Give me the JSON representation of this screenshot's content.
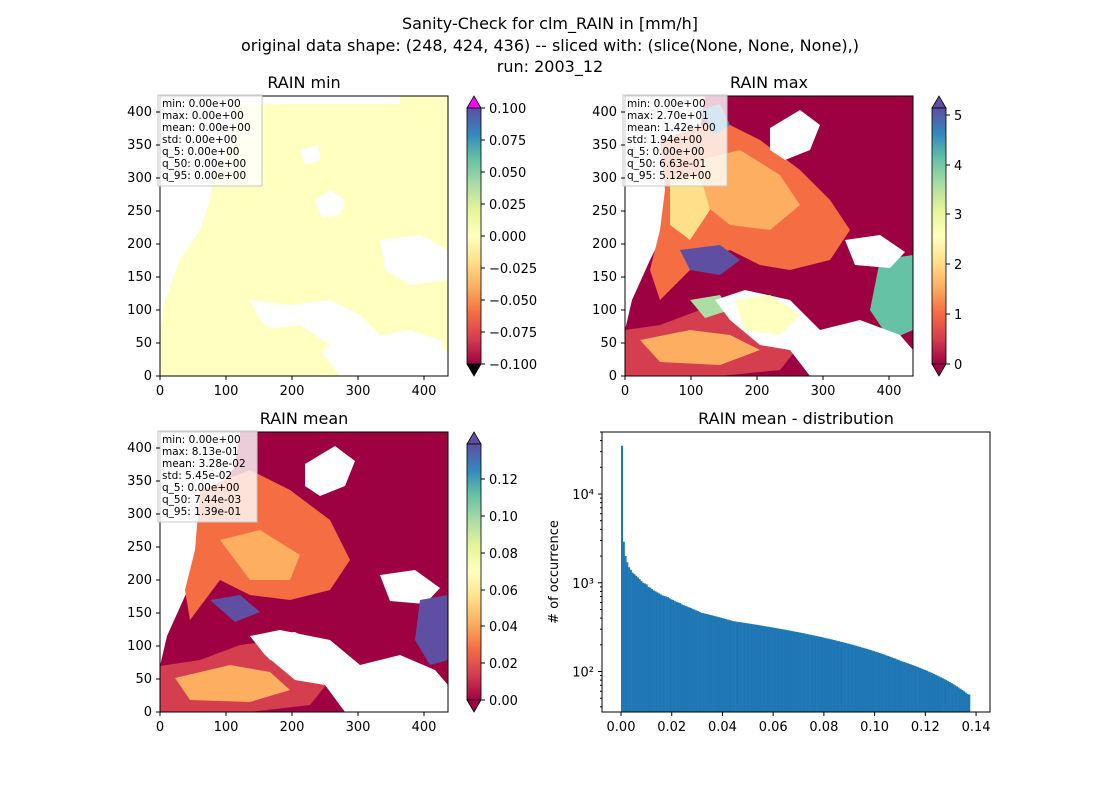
{
  "figure": {
    "title_lines": [
      "Sanity-Check for clm_RAIN in [mm/h]",
      "original data shape: (248, 424, 436) -- sliced with: (slice(None, None, None),)",
      "run: 2003_12"
    ]
  },
  "colormap": {
    "name": "Spectral",
    "stops": [
      "#9e0142",
      "#d53e4f",
      "#f46d43",
      "#fdae61",
      "#fee08b",
      "#ffffbf",
      "#e6f598",
      "#abdda4",
      "#66c2a5",
      "#3288bd",
      "#5e4fa2"
    ],
    "over_color_min_panel": "#ff00ff",
    "under_color_min_panel": "#000000",
    "land_color_min_panel": "#ffffbf"
  },
  "chart_data": [
    {
      "type": "heatmap",
      "title": "RAIN min",
      "xticks": [
        "0",
        "100",
        "200",
        "300",
        "400"
      ],
      "yticks": [
        "0",
        "50",
        "100",
        "150",
        "200",
        "250",
        "300",
        "350",
        "400"
      ],
      "xlim": [
        0,
        436
      ],
      "ylim": [
        0,
        424
      ],
      "colorbar": {
        "ticks": [
          "0.100",
          "0.075",
          "0.050",
          "0.025",
          "0.000",
          "−0.025",
          "−0.050",
          "−0.075",
          "−0.100"
        ],
        "range": [
          -0.1,
          0.1
        ],
        "extend": "both"
      },
      "stats": [
        "min: 0.00e+00",
        "max: 0.00e+00",
        "mean: 0.00e+00",
        "std: 0.00e+00",
        "q_5: 0.00e+00",
        "q_50: 0.00e+00",
        "q_95: 0.00e+00"
      ]
    },
    {
      "type": "heatmap",
      "title": "RAIN max",
      "xticks": [
        "0",
        "100",
        "200",
        "300",
        "400"
      ],
      "yticks": [
        "0",
        "50",
        "100",
        "150",
        "200",
        "250",
        "300",
        "350",
        "400"
      ],
      "xlim": [
        0,
        436
      ],
      "ylim": [
        0,
        424
      ],
      "colorbar": {
        "ticks": [
          "5",
          "4",
          "3",
          "2",
          "1",
          "0"
        ],
        "range": [
          0,
          5.2
        ],
        "extend": "both"
      },
      "stats": [
        "min: 0.00e+00",
        "max: 2.70e+01",
        "mean: 1.42e+00",
        "std: 1.94e+00",
        "q_5: 0.00e+00",
        "q_50: 6.63e-01",
        "q_95: 5.12e+00"
      ]
    },
    {
      "type": "heatmap",
      "title": "RAIN mean",
      "xticks": [
        "0",
        "100",
        "200",
        "300",
        "400"
      ],
      "yticks": [
        "0",
        "50",
        "100",
        "150",
        "200",
        "250",
        "300",
        "350",
        "400"
      ],
      "xlim": [
        0,
        436
      ],
      "ylim": [
        0,
        424
      ],
      "colorbar": {
        "ticks": [
          "0.12",
          "0.10",
          "0.08",
          "0.06",
          "0.04",
          "0.02",
          "0.00"
        ],
        "range": [
          0,
          0.139
        ],
        "extend": "both"
      },
      "stats": [
        "min: 0.00e+00",
        "max: 8.13e-01",
        "mean: 3.28e-02",
        "std: 5.45e-02",
        "q_5: 0.00e+00",
        "q_50: 7.44e-03",
        "q_95: 1.39e-01"
      ]
    },
    {
      "type": "bar",
      "title": "RAIN mean - distribution",
      "ylabel": "# of occurrence",
      "xlabel": "",
      "yscale": "log",
      "xlim": [
        -0.0075,
        0.1455
      ],
      "ylim": [
        35,
        50000
      ],
      "xticks": [
        "0.00",
        "0.02",
        "0.04",
        "0.06",
        "0.08",
        "0.10",
        "0.12",
        "0.14"
      ],
      "xtick_values": [
        0,
        0.02,
        0.04,
        0.06,
        0.08,
        0.1,
        0.12,
        0.14
      ],
      "yticks": [
        "10²",
        "10³",
        "10⁴"
      ],
      "ytick_values": [
        100,
        1000,
        10000
      ],
      "bar_color": "#1f77b4",
      "bin_width": 0.000695,
      "x_start": 0,
      "values": [
        35000,
        2900,
        2000,
        1700,
        1500,
        1400,
        1300,
        1250,
        1200,
        1150,
        1100,
        1050,
        1000,
        980,
        960,
        900,
        880,
        850,
        820,
        800,
        780,
        760,
        740,
        720,
        710,
        700,
        690,
        670,
        650,
        640,
        620,
        610,
        600,
        590,
        570,
        560,
        550,
        540,
        530,
        520,
        510,
        500,
        490,
        480,
        470,
        460,
        455,
        450,
        445,
        440,
        435,
        430,
        425,
        420,
        415,
        410,
        405,
        400,
        395,
        390,
        385,
        380,
        375,
        370,
        368,
        365,
        362,
        360,
        357,
        355,
        352,
        350,
        347,
        345,
        342,
        340,
        337,
        335,
        332,
        330,
        327,
        325,
        322,
        320,
        317,
        315,
        312,
        310,
        307,
        305,
        302,
        300,
        297,
        295,
        292,
        290,
        287,
        285,
        282,
        280,
        277,
        275,
        272,
        270,
        267,
        265,
        262,
        260,
        257,
        255,
        252,
        250,
        247,
        245,
        242,
        240,
        237,
        235,
        232,
        230,
        227,
        225,
        222,
        220,
        217,
        215,
        212,
        210,
        207,
        205,
        202,
        200,
        197,
        195,
        192,
        190,
        187,
        185,
        182,
        180,
        177,
        175,
        172,
        170,
        167,
        165,
        162,
        160,
        157,
        155,
        152,
        150,
        147,
        145,
        142,
        140,
        137,
        135,
        132,
        130,
        128,
        126,
        124,
        122,
        120,
        118,
        116,
        114,
        112,
        110,
        108,
        106,
        104,
        102,
        100,
        98,
        96,
        94,
        92,
        90,
        88,
        86,
        84,
        82,
        80,
        78,
        76,
        74,
        72,
        70,
        68,
        66,
        64,
        62,
        60,
        58,
        56,
        55
      ]
    }
  ]
}
